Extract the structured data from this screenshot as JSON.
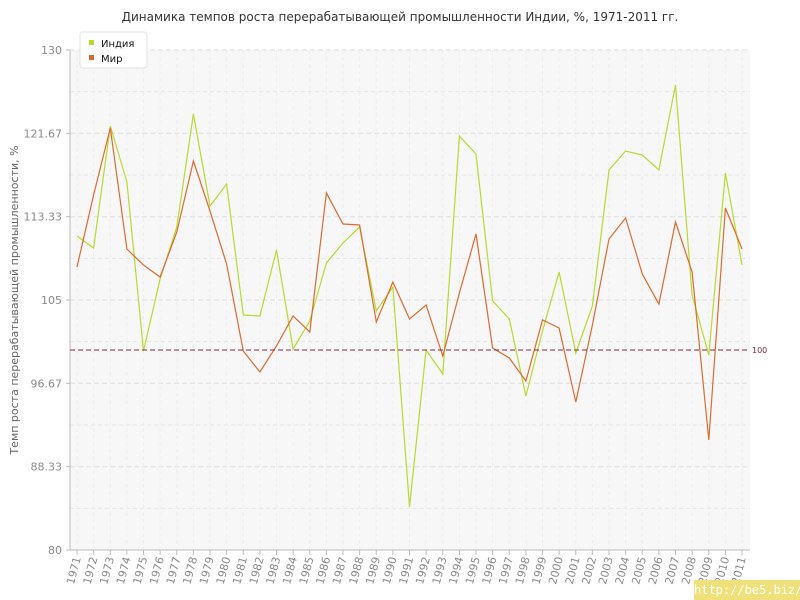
{
  "chart_data": {
    "type": "line",
    "title": "Динамика темпов роста перерабатывающей промышленности Индии, %, 1971-2011 гг.",
    "xlabel": "",
    "ylabel": "Темп роста перерабатывающей промышленности, %",
    "ylim": [
      80,
      130
    ],
    "yticks": [
      "80",
      "88.33",
      "96.67",
      "105",
      "113.33",
      "121.67",
      "130"
    ],
    "categories": [
      "1971",
      "1972",
      "1973",
      "1974",
      "1975",
      "1976",
      "1977",
      "1978",
      "1979",
      "1980",
      "1981",
      "1982",
      "1983",
      "1984",
      "1985",
      "1986",
      "1987",
      "1988",
      "1989",
      "1990",
      "1991",
      "1992",
      "1993",
      "1994",
      "1995",
      "1996",
      "1997",
      "1998",
      "1999",
      "2000",
      "2001",
      "2002",
      "2003",
      "2004",
      "2005",
      "2006",
      "2007",
      "2008",
      "2009",
      "2010",
      "2011"
    ],
    "series": [
      {
        "name": "Индия",
        "color": "#b7d930",
        "values": [
          111.4,
          110.2,
          122.4,
          116.8,
          99.9,
          107.1,
          112.3,
          123.6,
          114.4,
          116.6,
          103.5,
          103.4,
          110.0,
          100.1,
          102.9,
          108.7,
          110.7,
          112.3,
          103.9,
          106.3,
          84.3,
          100.0,
          97.6,
          121.4,
          119.6,
          104.9,
          103.1,
          95.4,
          101.9,
          107.8,
          99.7,
          104.4,
          118.0,
          119.9,
          119.5,
          118.0,
          126.5,
          105.5,
          99.5,
          117.7,
          108.5
        ]
      },
      {
        "name": "Мир",
        "color": "#dd6a2f",
        "values": [
          108.3,
          115.5,
          122.2,
          110.1,
          108.5,
          107.3,
          111.8,
          118.9,
          113.9,
          108.6,
          99.9,
          97.8,
          100.4,
          103.4,
          101.8,
          115.7,
          112.6,
          112.5,
          102.8,
          106.8,
          103.1,
          104.5,
          99.4,
          105.7,
          111.6,
          100.2,
          99.2,
          96.9,
          103.0,
          102.2,
          94.8,
          102.5,
          111.1,
          113.2,
          107.6,
          104.6,
          112.8,
          107.8,
          91.0,
          114.2,
          110.1
        ]
      }
    ],
    "reference_line": {
      "value": 100,
      "label": "100",
      "color": "#8b2a44"
    },
    "legend_position": "top-left",
    "grid": true
  },
  "watermark": "http://be5.biz/"
}
